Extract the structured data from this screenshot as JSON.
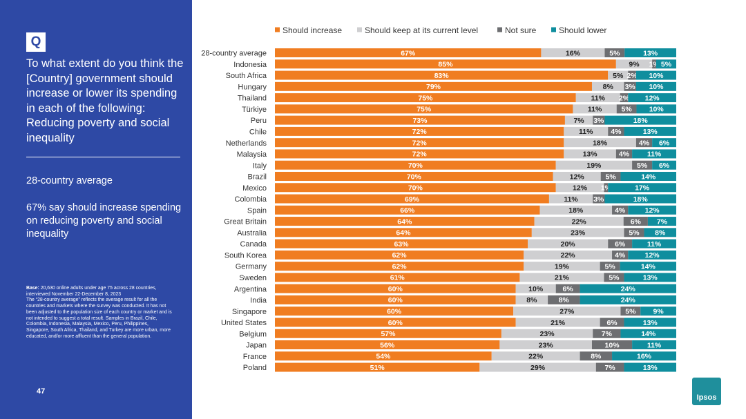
{
  "sidebar": {
    "badge": "Q",
    "question": "To what extent do you think the [Country] government should increase or lower its spending in each of the following: Reducing poverty and social inequality",
    "average_title": "28-country average",
    "average_text": "67% say should increase spending on reducing poverty and social inequality",
    "base_label": "Base:",
    "base_text": " 20,630 online adults under age 75 across 28 countries, interviewed November 22-December 8, 2023",
    "note_text": "The “28-country average” reflects the average result for all the countries and markets where the survey was conducted. It has not been adjusted to the population size of each country or market and is not intended to suggest a total result. Samples in Brazil, Chile, Colombia, Indonesia, Malaysia, Mexico, Peru, Philippines, Singapore, South Africa, Thailand, and Turkey are more urban, more educated, and/or more affluent than the general population.",
    "page_number": "47"
  },
  "logo": {
    "text": "Ipsos"
  },
  "chart_data": {
    "type": "bar",
    "orientation": "horizontal",
    "stacked": true,
    "legend_position": "top",
    "categories": [
      "28-country average",
      "Indonesia",
      "South Africa",
      "Hungary",
      "Thailand",
      "Türkiye",
      "Peru",
      "Chile",
      "Netherlands",
      "Malaysia",
      "Italy",
      "Brazil",
      "Mexico",
      "Colombia",
      "Spain",
      "Great Britain",
      "Australia",
      "Canada",
      "South Korea",
      "Germany",
      "Sweden",
      "Argentina",
      "India",
      "Singapore",
      "United States",
      "Belgium",
      "Japan",
      "France",
      "Poland"
    ],
    "series": [
      {
        "name": "Should increase",
        "color": "#f07d21",
        "values": [
          67,
          85,
          83,
          79,
          75,
          75,
          73,
          72,
          72,
          72,
          70,
          70,
          70,
          69,
          66,
          64,
          64,
          63,
          62,
          62,
          61,
          60,
          60,
          60,
          60,
          57,
          56,
          54,
          51
        ]
      },
      {
        "name": "Should keep at its current level",
        "color": "#cfcfd1",
        "values": [
          16,
          9,
          5,
          8,
          11,
          11,
          7,
          11,
          18,
          13,
          19,
          12,
          12,
          11,
          18,
          22,
          23,
          20,
          22,
          19,
          21,
          10,
          8,
          27,
          21,
          23,
          23,
          22,
          29
        ]
      },
      {
        "name": "Not sure",
        "color": "#6d6e71",
        "values": [
          5,
          1,
          2,
          3,
          2,
          5,
          3,
          4,
          4,
          4,
          5,
          5,
          1,
          3,
          4,
          6,
          5,
          6,
          4,
          5,
          5,
          6,
          8,
          5,
          6,
          7,
          10,
          8,
          7
        ]
      },
      {
        "name": "Should lower",
        "color": "#0f8e9e",
        "values": [
          13,
          5,
          10,
          10,
          12,
          10,
          18,
          13,
          6,
          11,
          6,
          14,
          17,
          18,
          12,
          7,
          8,
          11,
          12,
          14,
          13,
          24,
          24,
          9,
          13,
          14,
          11,
          16,
          13
        ]
      }
    ],
    "value_suffix": "%",
    "xlim": [
      0,
      100
    ],
    "gridlines": false
  }
}
